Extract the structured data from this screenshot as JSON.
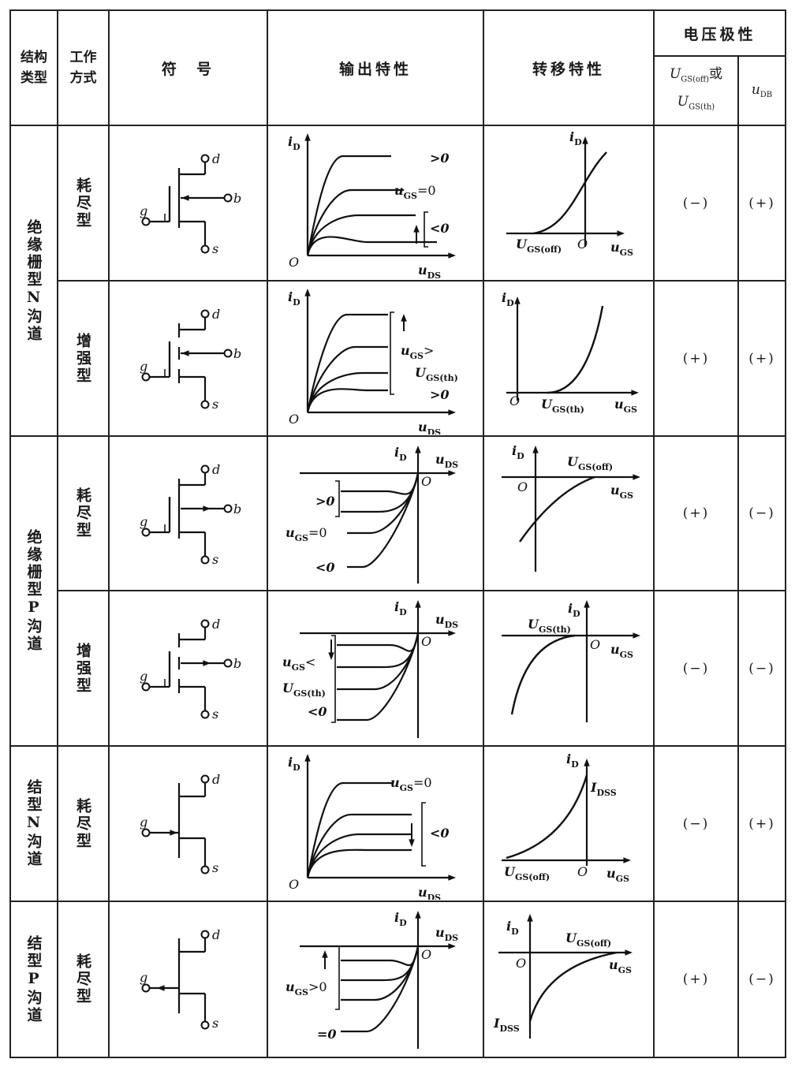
{
  "header": {
    "structure": "结构类型",
    "mode": "工作方式",
    "symbol": "符  号",
    "output": "输出特性",
    "transfer": "转移特性",
    "polarity": "电压极性",
    "pol_col1": {
      "u1": "U",
      "u1_sub": "GS(off)",
      "or": "或",
      "u2": "U",
      "u2_sub": "GS(th)"
    },
    "pol_col2": {
      "t": "u",
      "s": "DB"
    }
  },
  "groups": [
    {
      "label": "绝缘栅型N沟道"
    },
    {
      "label": "绝缘栅型P沟道"
    },
    {
      "label": "结型N沟道"
    },
    {
      "label": "结型P沟道"
    }
  ],
  "axis": {
    "iD": {
      "t": "i",
      "s": "D",
      "r": ""
    },
    "uDS": {
      "t": "u",
      "s": "DS",
      "r": ""
    },
    "uGS": {
      "t": "u",
      "s": "GS",
      "r": ""
    },
    "origin": "O"
  },
  "terminals": {
    "d": "d",
    "g": "g",
    "s": "s",
    "b": "b"
  },
  "rows": [
    {
      "mode": "耗尽型",
      "channel": "N",
      "kind": "mos-depletion",
      "output_labels": [
        {
          "t": ">0",
          "s": "",
          "r": ""
        },
        {
          "t": "u",
          "s": "GS",
          "r": "=0"
        },
        {
          "t": "<0",
          "s": "",
          "r": ""
        }
      ],
      "transfer_labels": [
        {
          "t": "U",
          "s": "GS(off)",
          "r": ""
        }
      ],
      "polarity": [
        "(−)",
        "(+)"
      ]
    },
    {
      "mode": "增强型",
      "channel": "N",
      "kind": "mos-enhancement",
      "output_labels": [
        {
          "t": "u",
          "s": "GS",
          "r": ">"
        },
        {
          "t": "U",
          "s": "GS(th)",
          "r": ""
        },
        {
          "t": ">0",
          "s": "",
          "r": ""
        }
      ],
      "transfer_labels": [
        {
          "t": "U",
          "s": "GS(th)",
          "r": ""
        }
      ],
      "polarity": [
        "(+)",
        "(+)"
      ]
    },
    {
      "mode": "耗尽型",
      "channel": "P",
      "kind": "mos-depletion",
      "output_labels": [
        {
          "t": ">0",
          "s": "",
          "r": ""
        },
        {
          "t": "u",
          "s": "GS",
          "r": "=0"
        },
        {
          "t": "<0",
          "s": "",
          "r": ""
        }
      ],
      "transfer_labels": [
        {
          "t": "U",
          "s": "GS(off)",
          "r": ""
        }
      ],
      "polarity": [
        "(+)",
        "(−)"
      ]
    },
    {
      "mode": "增强型",
      "channel": "P",
      "kind": "mos-enhancement",
      "output_labels": [
        {
          "t": "u",
          "s": "GS",
          "r": "<"
        },
        {
          "t": "U",
          "s": "GS(th)",
          "r": ""
        },
        {
          "t": "<0",
          "s": "",
          "r": ""
        }
      ],
      "transfer_labels": [
        {
          "t": "U",
          "s": "GS(th)",
          "r": ""
        }
      ],
      "polarity": [
        "(−)",
        "(−)"
      ]
    },
    {
      "mode": "耗尽型",
      "channel": "N",
      "kind": "jfet",
      "output_labels": [
        {
          "t": "u",
          "s": "GS",
          "r": "=0"
        },
        {
          "t": "<0",
          "s": "",
          "r": ""
        }
      ],
      "transfer_labels": [
        {
          "t": "I",
          "s": "DSS",
          "r": ""
        },
        {
          "t": "U",
          "s": "GS(off)",
          "r": ""
        }
      ],
      "polarity": [
        "(−)",
        "(+)"
      ]
    },
    {
      "mode": "耗尽型",
      "channel": "P",
      "kind": "jfet",
      "output_labels": [
        {
          "t": "u",
          "s": "GS",
          "r": ">0"
        },
        {
          "t": "=0",
          "s": "",
          "r": ""
        }
      ],
      "transfer_labels": [
        {
          "t": "U",
          "s": "GS(off)",
          "r": ""
        },
        {
          "t": "I",
          "s": "DSS",
          "r": ""
        }
      ],
      "polarity": [
        "(+)",
        "(−)"
      ]
    }
  ]
}
